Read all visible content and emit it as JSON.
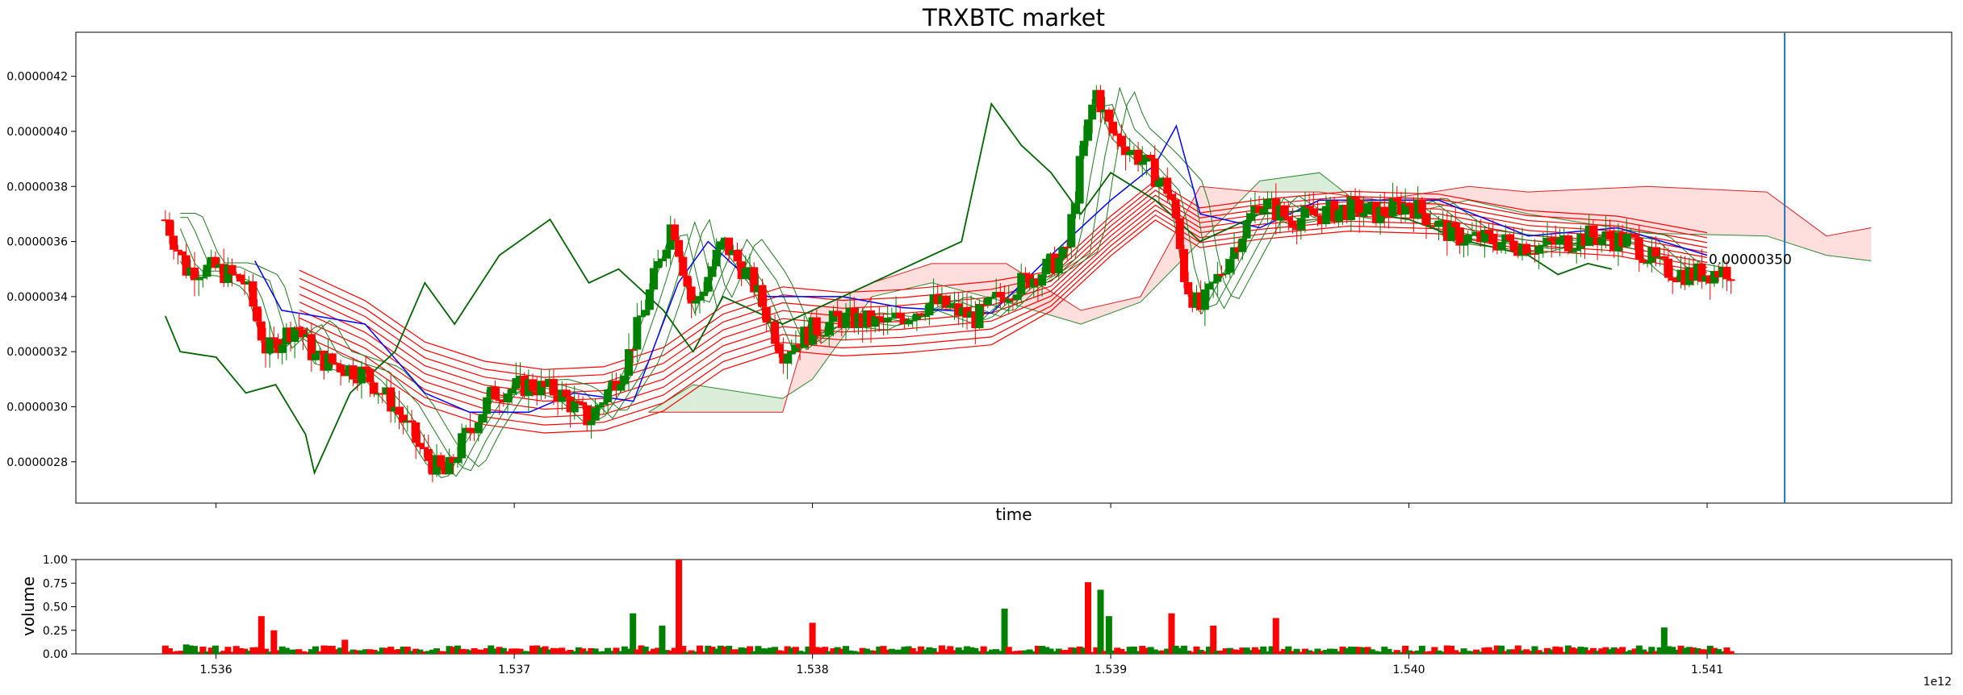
{
  "chart_data": [
    {
      "type": "candlestick",
      "title": "TRXBTC market",
      "xlabel": "time",
      "ylabel": "",
      "xlim": [
        1535530000000,
        1541820000000
      ],
      "ylim": [
        2.65e-06,
        4.36e-06
      ],
      "x_offset_label": "",
      "y_ticks": [
        "0.0000028",
        "0.0000030",
        "0.0000032",
        "0.0000034",
        "0.0000036",
        "0.0000038",
        "0.0000040",
        "0.0000042"
      ],
      "y_tick_values": [
        2.8e-06,
        3e-06,
        3.2e-06,
        3.4e-06,
        3.6e-06,
        3.8e-06,
        4e-06,
        4.2e-06
      ],
      "x_tick_values": [
        1536000000000,
        1537000000000,
        1538000000000,
        1539000000000,
        1540000000000,
        1541000000000
      ],
      "colors": {
        "up": "#008000",
        "down": "#ff0000",
        "tenkan": "#0000ff",
        "chikou": "#006400",
        "ema": "#ff0000",
        "cloud_bull": "#cfe8cf",
        "cloud_bear": "#ffd6d6",
        "marker": "#1f77b4"
      },
      "price_annotation": "0.00000350",
      "price_annotation_value": 3.5e-06,
      "price_annotation_x": 1541000000000,
      "vertical_marker_x": 1541260000000,
      "series_outline": {
        "candles_close": [
          [
            1535830000000,
            3.68e-06
          ],
          [
            1535900000000,
            3.5e-06
          ],
          [
            1536000000000,
            3.5e-06
          ],
          [
            1536100000000,
            3.45e-06
          ],
          [
            1536170000000,
            3.2e-06
          ],
          [
            1536270000000,
            3.3e-06
          ],
          [
            1536330000000,
            3.18e-06
          ],
          [
            1536500000000,
            3.12e-06
          ],
          [
            1536600000000,
            3e-06
          ],
          [
            1536700000000,
            2.82e-06
          ],
          [
            1536770000000,
            2.75e-06
          ],
          [
            1536830000000,
            2.88e-06
          ],
          [
            1536930000000,
            3.05e-06
          ],
          [
            1537050000000,
            3.08e-06
          ],
          [
            1537150000000,
            3.05e-06
          ],
          [
            1537250000000,
            2.95e-06
          ],
          [
            1537370000000,
            3.15e-06
          ],
          [
            1537450000000,
            3.4e-06
          ],
          [
            1537530000000,
            3.68e-06
          ],
          [
            1537600000000,
            3.35e-06
          ],
          [
            1537700000000,
            3.6e-06
          ],
          [
            1537800000000,
            3.45e-06
          ],
          [
            1537900000000,
            3.2e-06
          ],
          [
            1538000000000,
            3.28e-06
          ],
          [
            1538100000000,
            3.32e-06
          ],
          [
            1538250000000,
            3.3e-06
          ],
          [
            1538400000000,
            3.38e-06
          ],
          [
            1538550000000,
            3.32e-06
          ],
          [
            1538650000000,
            3.42e-06
          ],
          [
            1538750000000,
            3.48e-06
          ],
          [
            1538850000000,
            3.55e-06
          ],
          [
            1538900000000,
            3.9e-06
          ],
          [
            1538950000000,
            4.15e-06
          ],
          [
            1539000000000,
            4e-06
          ],
          [
            1539100000000,
            3.9e-06
          ],
          [
            1539200000000,
            3.78e-06
          ],
          [
            1539250000000,
            3.45e-06
          ],
          [
            1539300000000,
            3.35e-06
          ],
          [
            1539400000000,
            3.55e-06
          ],
          [
            1539500000000,
            3.75e-06
          ],
          [
            1539600000000,
            3.68e-06
          ],
          [
            1539700000000,
            3.7e-06
          ],
          [
            1539800000000,
            3.72e-06
          ],
          [
            1539900000000,
            3.7e-06
          ],
          [
            1540000000000,
            3.74e-06
          ],
          [
            1540150000000,
            3.62e-06
          ],
          [
            1540300000000,
            3.6e-06
          ],
          [
            1540450000000,
            3.58e-06
          ],
          [
            1540600000000,
            3.62e-06
          ],
          [
            1540750000000,
            3.6e-06
          ],
          [
            1540850000000,
            3.5e-06
          ],
          [
            1540950000000,
            3.48e-06
          ],
          [
            1541080000000,
            3.5e-06
          ]
        ],
        "tenkan": [
          [
            1536130000000,
            3.53e-06
          ],
          [
            1536220000000,
            3.35e-06
          ],
          [
            1536500000000,
            3.3e-06
          ],
          [
            1536700000000,
            3.05e-06
          ],
          [
            1536850000000,
            2.98e-06
          ],
          [
            1537050000000,
            2.98e-06
          ],
          [
            1537200000000,
            3.05e-06
          ],
          [
            1537400000000,
            3.02e-06
          ],
          [
            1537550000000,
            3.45e-06
          ],
          [
            1537650000000,
            3.6e-06
          ],
          [
            1537850000000,
            3.4e-06
          ],
          [
            1538100000000,
            3.4e-06
          ],
          [
            1538300000000,
            3.36e-06
          ],
          [
            1538600000000,
            3.34e-06
          ],
          [
            1538800000000,
            3.55e-06
          ],
          [
            1539000000000,
            3.75e-06
          ],
          [
            1539150000000,
            3.88e-06
          ],
          [
            1539220000000,
            4.02e-06
          ],
          [
            1539300000000,
            3.7e-06
          ],
          [
            1539500000000,
            3.65e-06
          ],
          [
            1539700000000,
            3.75e-06
          ],
          [
            1540100000000,
            3.75e-06
          ],
          [
            1540400000000,
            3.62e-06
          ],
          [
            1540700000000,
            3.65e-06
          ],
          [
            1541000000000,
            3.55e-06
          ]
        ],
        "chikou": [
          [
            1535830000000,
            3.33e-06
          ],
          [
            1535880000000,
            3.2e-06
          ],
          [
            1536000000000,
            3.18e-06
          ],
          [
            1536100000000,
            3.05e-06
          ],
          [
            1536200000000,
            3.08e-06
          ],
          [
            1536300000000,
            2.9e-06
          ],
          [
            1536330000000,
            2.76e-06
          ],
          [
            1536450000000,
            3.05e-06
          ],
          [
            1536600000000,
            3.2e-06
          ],
          [
            1536700000000,
            3.45e-06
          ],
          [
            1536800000000,
            3.3e-06
          ],
          [
            1536950000000,
            3.55e-06
          ],
          [
            1537120000000,
            3.68e-06
          ],
          [
            1537250000000,
            3.45e-06
          ],
          [
            1537350000000,
            3.5e-06
          ],
          [
            1537500000000,
            3.35e-06
          ],
          [
            1537600000000,
            3.2e-06
          ],
          [
            1537700000000,
            3.4e-06
          ],
          [
            1537900000000,
            3.3e-06
          ],
          [
            1538100000000,
            3.4e-06
          ],
          [
            1538300000000,
            3.5e-06
          ],
          [
            1538500000000,
            3.6e-06
          ],
          [
            1538600000000,
            4.1e-06
          ],
          [
            1538700000000,
            3.95e-06
          ],
          [
            1538800000000,
            3.85e-06
          ],
          [
            1538900000000,
            3.7e-06
          ],
          [
            1539000000000,
            3.85e-06
          ],
          [
            1539150000000,
            3.75e-06
          ],
          [
            1539300000000,
            3.6e-06
          ],
          [
            1539500000000,
            3.7e-06
          ],
          [
            1539750000000,
            3.72e-06
          ],
          [
            1540000000000,
            3.68e-06
          ],
          [
            1540200000000,
            3.6e-06
          ],
          [
            1540400000000,
            3.55e-06
          ],
          [
            1540500000000,
            3.48e-06
          ],
          [
            1540600000000,
            3.52e-06
          ],
          [
            1540680000000,
            3.5e-06
          ]
        ],
        "ema_mid": [
          [
            1536280000000,
            3.38e-06
          ],
          [
            1536500000000,
            3.27e-06
          ],
          [
            1536700000000,
            3.12e-06
          ],
          [
            1536900000000,
            3.05e-06
          ],
          [
            1537100000000,
            3.02e-06
          ],
          [
            1537300000000,
            3.03e-06
          ],
          [
            1537500000000,
            3.1e-06
          ],
          [
            1537700000000,
            3.25e-06
          ],
          [
            1537900000000,
            3.32e-06
          ],
          [
            1538100000000,
            3.3e-06
          ],
          [
            1538300000000,
            3.31e-06
          ],
          [
            1538600000000,
            3.34e-06
          ],
          [
            1538800000000,
            3.42e-06
          ],
          [
            1539000000000,
            3.62e-06
          ],
          [
            1539150000000,
            3.75e-06
          ],
          [
            1539300000000,
            3.65e-06
          ],
          [
            1539500000000,
            3.68e-06
          ],
          [
            1539800000000,
            3.71e-06
          ],
          [
            1540100000000,
            3.7e-06
          ],
          [
            1540400000000,
            3.64e-06
          ],
          [
            1540700000000,
            3.62e-06
          ],
          [
            1541000000000,
            3.56e-06
          ]
        ],
        "cloud_a": [
          [
            1537450000000,
            2.98e-06
          ],
          [
            1537600000000,
            3.08e-06
          ],
          [
            1537900000000,
            3.03e-06
          ],
          [
            1538000000000,
            3.1e-06
          ],
          [
            1538200000000,
            3.4e-06
          ],
          [
            1538400000000,
            3.45e-06
          ],
          [
            1538650000000,
            3.38e-06
          ],
          [
            1538900000000,
            3.3e-06
          ],
          [
            1539100000000,
            3.38e-06
          ],
          [
            1539300000000,
            3.6e-06
          ],
          [
            1539500000000,
            3.82e-06
          ],
          [
            1539700000000,
            3.85e-06
          ],
          [
            1539900000000,
            3.68e-06
          ],
          [
            1540200000000,
            3.75e-06
          ],
          [
            1540400000000,
            3.7e-06
          ],
          [
            1540800000000,
            3.63e-06
          ],
          [
            1541200000000,
            3.62e-06
          ],
          [
            1541400000000,
            3.55e-06
          ],
          [
            1541550000000,
            3.53e-06
          ]
        ],
        "cloud_b": [
          [
            1537450000000,
            2.98e-06
          ],
          [
            1537600000000,
            2.98e-06
          ],
          [
            1537900000000,
            2.98e-06
          ],
          [
            1538000000000,
            3.35e-06
          ],
          [
            1538200000000,
            3.45e-06
          ],
          [
            1538400000000,
            3.52e-06
          ],
          [
            1538650000000,
            3.52e-06
          ],
          [
            1538900000000,
            3.35e-06
          ],
          [
            1539100000000,
            3.4e-06
          ],
          [
            1539300000000,
            3.8e-06
          ],
          [
            1539500000000,
            3.78e-06
          ],
          [
            1539700000000,
            3.78e-06
          ],
          [
            1539900000000,
            3.75e-06
          ],
          [
            1540200000000,
            3.8e-06
          ],
          [
            1540400000000,
            3.78e-06
          ],
          [
            1540800000000,
            3.8e-06
          ],
          [
            1541200000000,
            3.78e-06
          ],
          [
            1541400000000,
            3.62e-06
          ],
          [
            1541550000000,
            3.65e-06
          ]
        ]
      }
    },
    {
      "type": "bar",
      "title": "",
      "xlabel": "",
      "ylabel": "volume",
      "xlim": [
        1535530000000,
        1541820000000
      ],
      "ylim": [
        0,
        1
      ],
      "y_ticks": [
        "0.00",
        "0.25",
        "0.50",
        "0.75",
        "1.00"
      ],
      "y_tick_values": [
        0,
        0.25,
        0.5,
        0.75,
        1
      ],
      "x_ticks": [
        "1.536",
        "1.537",
        "1.538",
        "1.539",
        "1.540",
        "1.541"
      ],
      "x_tick_values": [
        1536000000000,
        1537000000000,
        1538000000000,
        1539000000000,
        1540000000000,
        1541000000000
      ],
      "x_exponent_label": "1e12",
      "volume_spikes": [
        [
          1535900000000,
          0.1
        ],
        [
          1536150000000,
          0.4
        ],
        [
          1536200000000,
          0.25
        ],
        [
          1536430000000,
          0.15
        ],
        [
          1537400000000,
          0.43
        ],
        [
          1537500000000,
          0.3
        ],
        [
          1537550000000,
          1.0
        ],
        [
          1538000000000,
          0.33
        ],
        [
          1538650000000,
          0.48
        ],
        [
          1538930000000,
          0.76
        ],
        [
          1538960000000,
          0.68
        ],
        [
          1539000000000,
          0.4
        ],
        [
          1539200000000,
          0.43
        ],
        [
          1539350000000,
          0.3
        ],
        [
          1539550000000,
          0.38
        ],
        [
          1540850000000,
          0.28
        ]
      ]
    }
  ]
}
